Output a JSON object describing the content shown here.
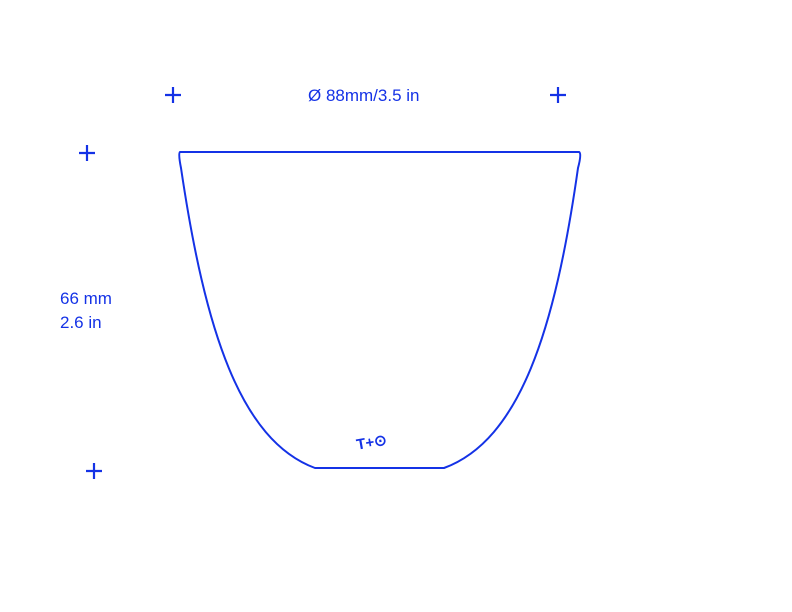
{
  "diameter_label": "Ø 88mm/3.5 in",
  "height_label_mm": "66 mm",
  "height_label_in": "2.6 in",
  "logo": "T+⊙"
}
